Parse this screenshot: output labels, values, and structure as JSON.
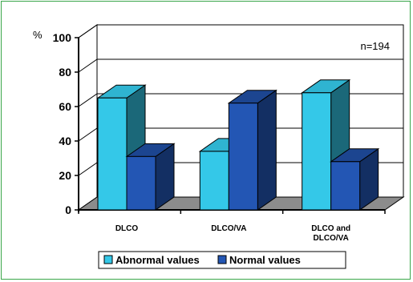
{
  "chart_data": {
    "type": "bar",
    "categories": [
      "DLCO",
      "DLCO/VA",
      "DLCO and DLCO/VA"
    ],
    "series": [
      {
        "name": "Abnormal values",
        "values": [
          65,
          34,
          68
        ],
        "color": "#34c8e8"
      },
      {
        "name": "Normal values",
        "values": [
          31,
          62,
          28
        ],
        "color": "#2356b4"
      }
    ],
    "y_unit": "%",
    "annotation": "n=194",
    "ylim": [
      0,
      100
    ],
    "yticks": [
      0,
      20,
      40,
      60,
      80,
      100
    ],
    "grid": true,
    "three_d": true,
    "legend_position": "bottom"
  }
}
